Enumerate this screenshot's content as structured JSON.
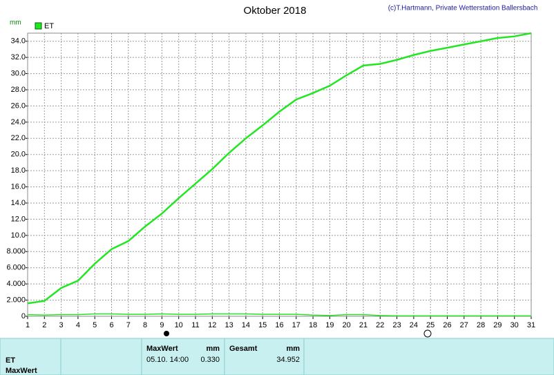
{
  "chart_data": {
    "type": "line",
    "title": "Oktober 2018",
    "credit": "(c)T.Hartmann, Private Wetterstation Ballersbach",
    "y_label": "mm",
    "x": [
      1,
      2,
      3,
      4,
      5,
      6,
      7,
      8,
      9,
      10,
      11,
      12,
      13,
      14,
      15,
      16,
      17,
      18,
      19,
      20,
      21,
      22,
      23,
      24,
      25,
      26,
      27,
      28,
      29,
      30,
      31
    ],
    "xlim": [
      1,
      31
    ],
    "series": [
      {
        "name": "ET",
        "color": "#22e622",
        "values": [
          1.6,
          1.9,
          3.5,
          4.4,
          6.5,
          8.3,
          9.3,
          11.1,
          12.7,
          14.6,
          16.4,
          18.2,
          20.2,
          22.0,
          23.6,
          25.3,
          26.8,
          27.6,
          28.5,
          29.8,
          31.0,
          31.2,
          31.7,
          32.3,
          32.8,
          33.2,
          33.6,
          34.0,
          34.4,
          34.6,
          35.0
        ]
      },
      {
        "color": "#22e622",
        "values": [
          0.2,
          0.15,
          0.2,
          0.2,
          0.3,
          0.3,
          0.25,
          0.25,
          0.3,
          0.25,
          0.25,
          0.3,
          0.3,
          0.3,
          0.25,
          0.25,
          0.25,
          0.15,
          0.1,
          0.2,
          0.2,
          0.1,
          0.05,
          0.05,
          0.05,
          0.05,
          0.05,
          0.05,
          0.05,
          0.05,
          0.05
        ]
      }
    ],
    "ylim": [
      0,
      35
    ],
    "yticks": [
      0,
      {
        "value": 2,
        "label": "2.000"
      },
      {
        "value": 4,
        "label": "4.000"
      },
      {
        "value": 6,
        "label": "6.000"
      },
      {
        "value": 8,
        "label": "8.000"
      },
      {
        "value": 10,
        "label": "10.0"
      },
      {
        "value": 12,
        "label": "12.0"
      },
      {
        "value": 14,
        "label": "14.0"
      },
      {
        "value": 16,
        "label": "16.0"
      },
      {
        "value": 18,
        "label": "18.0"
      },
      {
        "value": 20,
        "label": "20.0"
      },
      {
        "value": 22,
        "label": "22.0"
      },
      {
        "value": 24,
        "label": "24.0"
      },
      {
        "value": 26,
        "label": "26.0"
      },
      {
        "value": 28,
        "label": "28.0"
      },
      {
        "value": 30,
        "label": "30.0"
      },
      {
        "value": 32,
        "label": "32.0"
      },
      {
        "value": 34,
        "label": "34.0"
      }
    ],
    "grid": true
  },
  "table": {
    "row_labels": [
      "ET",
      "MaxWert"
    ],
    "max": {
      "header": "MaxWert",
      "unit": "mm",
      "date": "05.10. 14:00",
      "value": "0.330"
    },
    "total": {
      "header": "Gesamt",
      "unit": "mm",
      "value": "34.952"
    }
  }
}
